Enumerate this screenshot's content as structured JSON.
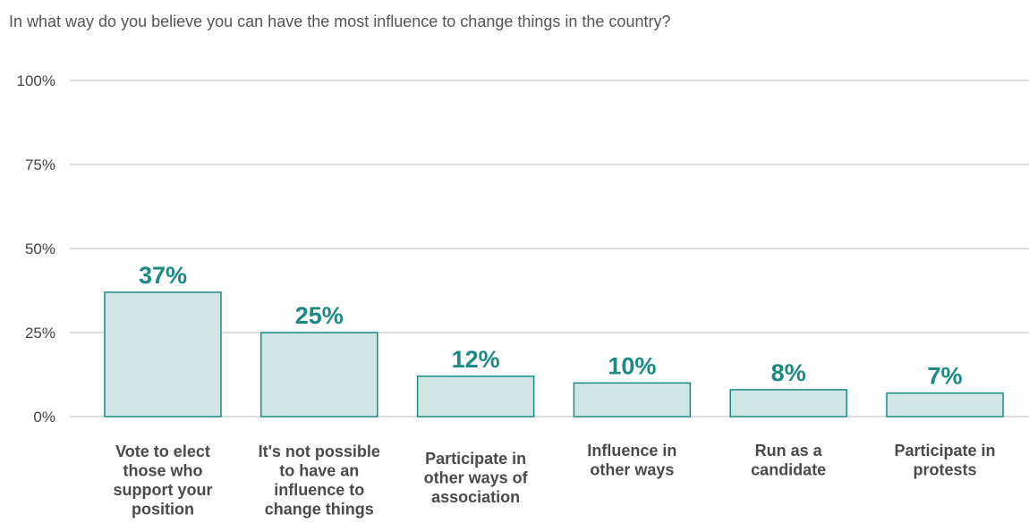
{
  "chart_data": {
    "type": "bar",
    "title": "In what way do you believe you can have the most influence to change things in the country?",
    "categories": [
      [
        "Vote to elect",
        "those who",
        "support your",
        "position"
      ],
      [
        "It's not possible",
        "to have an",
        "influence to",
        "change things"
      ],
      [
        "Participate in",
        "other ways of",
        "association"
      ],
      [
        "Influence in",
        "other ways"
      ],
      [
        "Run as a",
        "candidate"
      ],
      [
        "Participate in",
        "protests"
      ]
    ],
    "values": [
      37,
      25,
      12,
      10,
      8,
      7
    ],
    "data_labels": [
      "37%",
      "25%",
      "12%",
      "10%",
      "8%",
      "7%"
    ],
    "yticks": [
      {
        "value": 100,
        "label": "100%"
      },
      {
        "value": 75,
        "label": "75%"
      },
      {
        "value": 50,
        "label": "50%"
      },
      {
        "value": 25,
        "label": "25%"
      },
      {
        "value": 0,
        "label": "0%"
      }
    ],
    "ylim": [
      0,
      100
    ],
    "grid": true,
    "colors": {
      "bar_fill": "#cfe6e4",
      "bar_stroke": "#1b8a85",
      "label": "#1b8a85"
    }
  }
}
